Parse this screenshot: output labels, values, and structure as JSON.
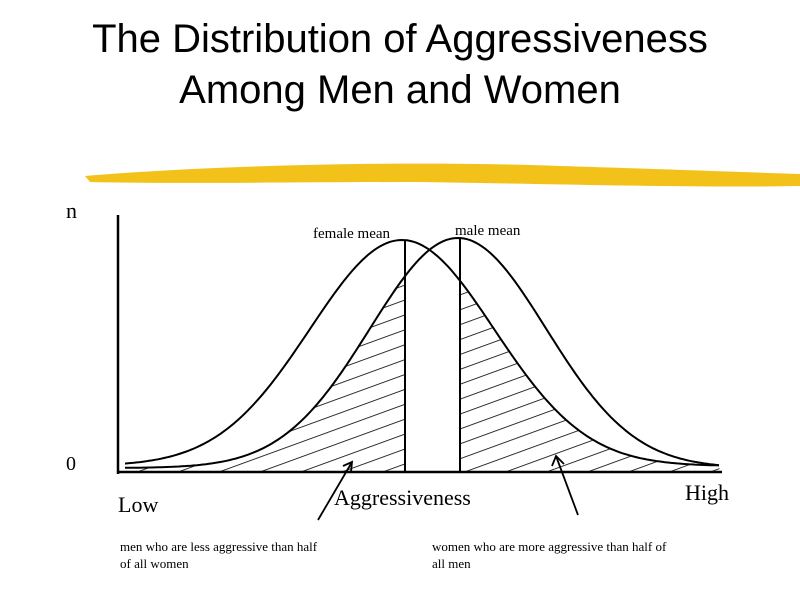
{
  "title": {
    "lines": [
      "The Distribution of Aggressiveness",
      "Among Men and Women"
    ]
  },
  "axes": {
    "y_label": "n",
    "y_zero": "0",
    "x_low": "Low",
    "x_high": "High",
    "x_label": "Aggressiveness"
  },
  "curves": {
    "female": "female mean",
    "male": "male mean"
  },
  "annotations": [
    "men who are less aggressive than half of all women",
    "women who are more aggressive than half of all men"
  ]
}
